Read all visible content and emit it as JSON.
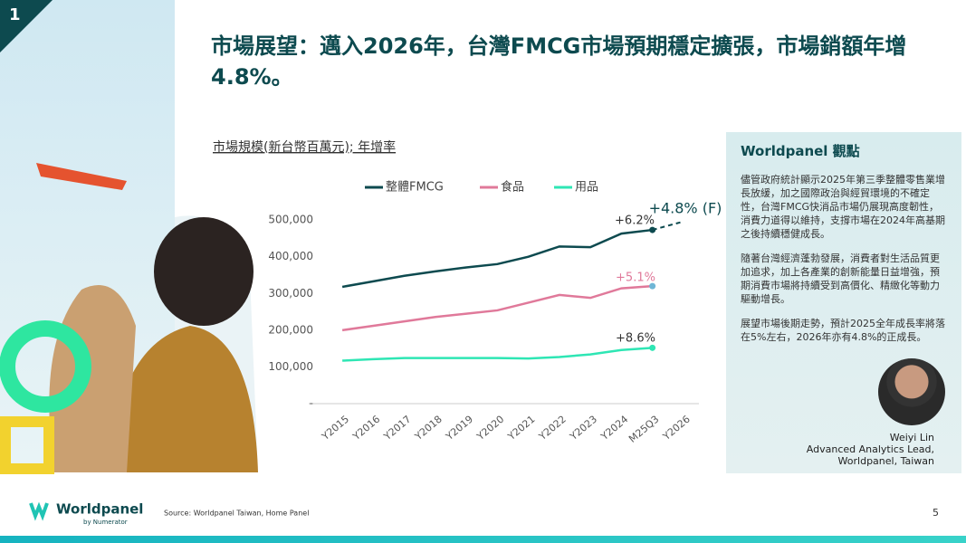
{
  "slide_number": "1",
  "title": "市場展望：邁入2026年，台灣FMCG市場預期穩定擴張，市場銷額年增4.8%。",
  "chart_data": {
    "type": "line",
    "subtitle": "市場規模(新台幣百萬元); 年增率",
    "categories": [
      "Y2015",
      "Y2016",
      "Y2017",
      "Y2018",
      "Y2019",
      "Y2020",
      "Y2021",
      "Y2022",
      "Y2023",
      "Y2024",
      "M25Q3",
      "Y2026"
    ],
    "series": [
      {
        "name": "整體FMCG",
        "color": "#0d4a4f",
        "values": [
          318000,
          333000,
          348000,
          360000,
          371000,
          380000,
          400000,
          428000,
          426000,
          463000,
          473000,
          496000
        ],
        "dashed_last_segment": true
      },
      {
        "name": "食品",
        "color": "#e0799a",
        "values": [
          200000,
          212000,
          224000,
          236000,
          245000,
          254000,
          275000,
          296000,
          288000,
          314000,
          320000,
          null
        ]
      },
      {
        "name": "用品",
        "color": "#2ee6b4",
        "values": [
          117000,
          121000,
          124000,
          124000,
          124000,
          124000,
          123000,
          127000,
          134000,
          146000,
          152000,
          null
        ]
      }
    ],
    "annotations": [
      "+6.2%",
      "+4.8% (F)",
      "+5.1%",
      "+8.6%"
    ],
    "ylim": [
      0,
      520000
    ],
    "yticks": [
      {
        "value": 0,
        "label": "-"
      },
      {
        "value": 100000,
        "label": "100,000"
      },
      {
        "value": 200000,
        "label": "200,000"
      },
      {
        "value": 300000,
        "label": "300,000"
      },
      {
        "value": 400000,
        "label": "400,000"
      },
      {
        "value": 500000,
        "label": "500,000"
      }
    ],
    "grid": false,
    "legend": "top"
  },
  "panel": {
    "heading": "Worldpanel 觀點",
    "paragraphs": [
      "儘管政府統計顯示2025年第三季整體零售業增長放緩，加之國際政治與經貿環境的不確定性，台灣FMCG快消品市場仍展現高度韌性，消費力道得以維持，支撐市場在2024年高基期之後持續穩健成長。",
      "隨著台灣經濟蓬勃發展，消費者對生活品質更加追求，加上各產業的創新能量日益增強，預期消費市場將持續受到高價化、精緻化等動力驅動增長。",
      "展望市場後期走勢，預計2025全年成長率將落在5%左右，2026年亦有4.8%的正成長。"
    ],
    "person": [
      "Weiyi Lin",
      "Advanced Analytics Lead,",
      "Worldpanel, Taiwan"
    ]
  },
  "footer": {
    "logo": "Worldpanel",
    "logo_sub": "by Numerator",
    "source": "Source: Worldpanel Taiwan, Home Panel",
    "page": "5"
  }
}
